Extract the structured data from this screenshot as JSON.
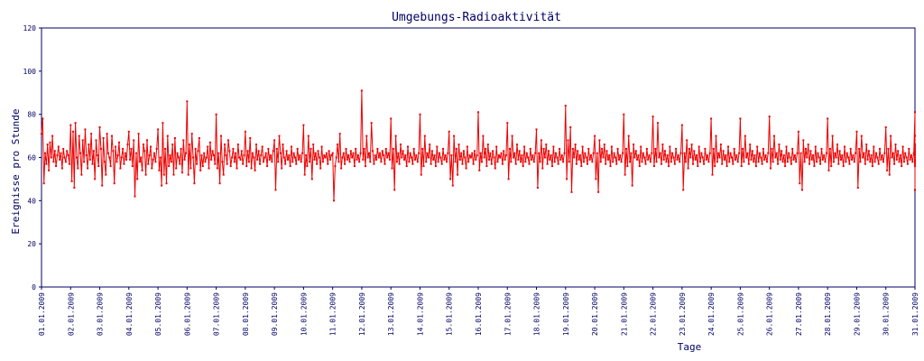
{
  "colors": {
    "series": "#ee0000",
    "axis": "#000066",
    "text": "#000066",
    "background": "#ffffff"
  },
  "chart_data": {
    "type": "line",
    "title": "Umgebungs-Radioaktivität",
    "xlabel": "Tage",
    "ylabel": "Ereignisse pro Stunde",
    "ylim": [
      0,
      120
    ],
    "yticks": [
      0,
      20,
      40,
      60,
      80,
      100,
      120
    ],
    "xlim": [
      "01.01.2009",
      "31.01.2009"
    ],
    "xticks": [
      "01.01.2009",
      "02.01.2009",
      "03.01.2009",
      "04.01.2009",
      "05.01.2009",
      "06.01.2009",
      "07.01.2009",
      "08.01.2009",
      "09.01.2009",
      "10.01.2009",
      "11.01.2009",
      "12.01.2009",
      "13.01.2009",
      "14.01.2009",
      "15.01.2009",
      "16.01.2009",
      "17.01.2009",
      "18.01.2009",
      "19.01.2009",
      "20.01.2009",
      "21.01.2009",
      "22.01.2009",
      "23.01.2009",
      "24.01.2009",
      "25.01.2009",
      "26.01.2009",
      "27.01.2009",
      "28.01.2009",
      "29.01.2009",
      "30.01.2009",
      "31.01.2009"
    ],
    "grid": false,
    "markers": "small squares",
    "series": [
      {
        "points_per_day": 24,
        "values": [
          71,
          78,
          48,
          62,
          57,
          66,
          54,
          67,
          60,
          70,
          58,
          63,
          56,
          61,
          65,
          59,
          62,
          55,
          64,
          60,
          58,
          63,
          61,
          57,
          75,
          49,
          72,
          46,
          76,
          60,
          55,
          70,
          62,
          52,
          68,
          58,
          73,
          61,
          55,
          66,
          59,
          71,
          57,
          63,
          50,
          68,
          61,
          56,
          74,
          64,
          47,
          69,
          58,
          52,
          71,
          62,
          60,
          56,
          70,
          63,
          48,
          65,
          58,
          61,
          67,
          55,
          60,
          64,
          57,
          62,
          59,
          66,
          72,
          59,
          64,
          56,
          68,
          42,
          62,
          50,
          71,
          58,
          60,
          54,
          66,
          63,
          52,
          68,
          57,
          61,
          65,
          55,
          59,
          62,
          58,
          64,
          73,
          54,
          60,
          47,
          76,
          52,
          64,
          48,
          70,
          56,
          61,
          58,
          66,
          52,
          69,
          55,
          62,
          60,
          57,
          64,
          53,
          68,
          59,
          62,
          86,
          52,
          66,
          55,
          71,
          60,
          48,
          64,
          57,
          63,
          69,
          54,
          61,
          56,
          62,
          58,
          60,
          65,
          55,
          67,
          59,
          63,
          61,
          57,
          80,
          55,
          62,
          48,
          70,
          58,
          52,
          66,
          61,
          57,
          68,
          63,
          56,
          60,
          64,
          58,
          62,
          55,
          66,
          60,
          59,
          63,
          57,
          61,
          72,
          56,
          63,
          58,
          69,
          55,
          62,
          60,
          54,
          66,
          59,
          63,
          57,
          61,
          65,
          58,
          60,
          62,
          56,
          64,
          59,
          61,
          58,
          63,
          68,
          45,
          64,
          58,
          70,
          62,
          55,
          66,
          60,
          57,
          63,
          59,
          61,
          56,
          65,
          58,
          62,
          60,
          57,
          64,
          59,
          61,
          58,
          62,
          75,
          52,
          61,
          56,
          70,
          58,
          64,
          50,
          66,
          59,
          62,
          57,
          63,
          60,
          55,
          65,
          58,
          61,
          60,
          62,
          57,
          63,
          59,
          61,
          62,
          40,
          56,
          60,
          66,
          58,
          71,
          55,
          60,
          62,
          57,
          64,
          59,
          61,
          58,
          63,
          60,
          62,
          56,
          64,
          59,
          61,
          58,
          62,
          91,
          59,
          64,
          56,
          70,
          60,
          62,
          58,
          76,
          63,
          57,
          61,
          59,
          64,
          60,
          62,
          58,
          63,
          61,
          57,
          64,
          60,
          62,
          59,
          78,
          55,
          64,
          45,
          70,
          58,
          62,
          57,
          66,
          60,
          63,
          59,
          61,
          56,
          65,
          58,
          62,
          60,
          57,
          64,
          59,
          61,
          58,
          62,
          80,
          52,
          64,
          56,
          70,
          58,
          62,
          60,
          66,
          57,
          63,
          59,
          61,
          56,
          65,
          58,
          62,
          60,
          57,
          64,
          59,
          61,
          58,
          62,
          72,
          50,
          61,
          47,
          70,
          58,
          64,
          52,
          66,
          59,
          62,
          57,
          63,
          60,
          55,
          65,
          58,
          61,
          60,
          62,
          57,
          63,
          59,
          61,
          81,
          54,
          62,
          58,
          70,
          60,
          64,
          56,
          66,
          59,
          62,
          57,
          63,
          60,
          55,
          65,
          58,
          61,
          60,
          62,
          57,
          63,
          59,
          61,
          76,
          50,
          64,
          58,
          70,
          60,
          62,
          57,
          66,
          59,
          63,
          58,
          61,
          56,
          65,
          58,
          62,
          60,
          57,
          64,
          59,
          61,
          58,
          62,
          73,
          46,
          62,
          58,
          68,
          55,
          64,
          60,
          66,
          57,
          63,
          59,
          61,
          56,
          65,
          58,
          62,
          60,
          57,
          64,
          59,
          61,
          58,
          62,
          84,
          50,
          68,
          58,
          74,
          44,
          64,
          60,
          66,
          57,
          63,
          59,
          61,
          56,
          65,
          58,
          62,
          60,
          57,
          64,
          59,
          61,
          58,
          62,
          70,
          50,
          62,
          44,
          68,
          58,
          64,
          60,
          66,
          57,
          63,
          59,
          61,
          56,
          65,
          58,
          62,
          60,
          57,
          64,
          59,
          61,
          58,
          62,
          80,
          52,
          64,
          56,
          70,
          58,
          62,
          47,
          66,
          60,
          63,
          59,
          61,
          56,
          65,
          58,
          62,
          60,
          57,
          64,
          59,
          61,
          58,
          62,
          79,
          56,
          64,
          58,
          76,
          60,
          62,
          57,
          66,
          59,
          63,
          58,
          61,
          56,
          65,
          58,
          62,
          60,
          57,
          64,
          59,
          61,
          58,
          62,
          75,
          45,
          62,
          58,
          68,
          55,
          64,
          60,
          66,
          57,
          63,
          59,
          61,
          56,
          65,
          58,
          62,
          60,
          57,
          64,
          59,
          61,
          58,
          62,
          78,
          52,
          64,
          56,
          70,
          58,
          62,
          60,
          66,
          57,
          63,
          59,
          61,
          56,
          65,
          58,
          62,
          60,
          57,
          64,
          59,
          61,
          58,
          62,
          78,
          56,
          64,
          58,
          70,
          60,
          62,
          57,
          66,
          59,
          63,
          58,
          61,
          56,
          65,
          58,
          62,
          60,
          57,
          64,
          59,
          61,
          58,
          62,
          79,
          55,
          64,
          58,
          70,
          60,
          62,
          57,
          66,
          59,
          63,
          58,
          61,
          56,
          65,
          58,
          62,
          60,
          57,
          64,
          59,
          61,
          58,
          62,
          72,
          48,
          62,
          45,
          68,
          58,
          64,
          60,
          66,
          57,
          63,
          59,
          61,
          56,
          65,
          58,
          62,
          60,
          57,
          64,
          59,
          61,
          58,
          62,
          78,
          54,
          64,
          56,
          70,
          58,
          62,
          60,
          66,
          57,
          63,
          59,
          61,
          56,
          65,
          58,
          62,
          60,
          57,
          64,
          59,
          61,
          58,
          62,
          72,
          46,
          64,
          58,
          70,
          60,
          62,
          57,
          66,
          59,
          63,
          58,
          61,
          56,
          65,
          58,
          62,
          60,
          57,
          64,
          59,
          61,
          58,
          62,
          74,
          54,
          64,
          52,
          70,
          60,
          62,
          57,
          66,
          59,
          63,
          58,
          61,
          56,
          65,
          58,
          62,
          60,
          57,
          64,
          59,
          61,
          58,
          62,
          81,
          58,
          66,
          45,
          70,
          60,
          62,
          57,
          66,
          59,
          63,
          58,
          61,
          56,
          65,
          58,
          62,
          60,
          57,
          64,
          59,
          61,
          58,
          62
        ]
      }
    ]
  }
}
